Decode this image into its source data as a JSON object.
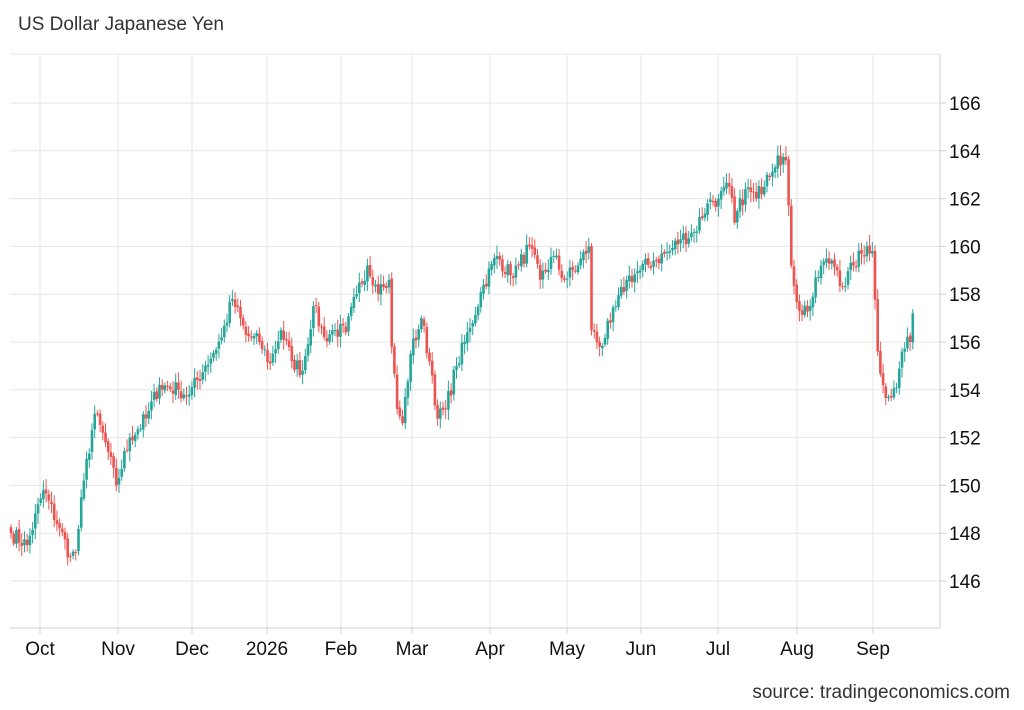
{
  "chart_data": {
    "type": "candlestick",
    "title": "US Dollar Japanese Yen",
    "source": "source: tradingeconomics.com",
    "y_ticks": [
      146,
      148,
      150,
      152,
      154,
      156,
      158,
      160,
      162,
      164,
      166
    ],
    "ylim": [
      144,
      168
    ],
    "x_ticks": [
      "Oct",
      "Nov",
      "Dec",
      "2026",
      "Feb",
      "Mar",
      "Apr",
      "May",
      "Jun",
      "Jul",
      "Aug",
      "Sep"
    ],
    "grid": true,
    "colors": {
      "up": "#26a69a",
      "down": "#ef5350",
      "grid": "#e6e6e6",
      "axis": "#d0d0d0"
    },
    "anchors": [
      [
        0,
        148.0
      ],
      [
        6,
        147.5
      ],
      [
        12,
        149.8
      ],
      [
        18,
        148.2
      ],
      [
        22,
        147.0
      ],
      [
        24,
        147.2
      ],
      [
        27,
        150.2
      ],
      [
        31,
        153.0
      ],
      [
        35,
        151.8
      ],
      [
        39,
        150.0
      ],
      [
        44,
        152.0
      ],
      [
        50,
        152.8
      ],
      [
        55,
        154.2
      ],
      [
        62,
        154.0
      ],
      [
        66,
        153.8
      ],
      [
        72,
        155.0
      ],
      [
        78,
        156.2
      ],
      [
        82,
        157.8
      ],
      [
        87,
        156.3
      ],
      [
        92,
        156.0
      ],
      [
        96,
        155.1
      ],
      [
        100,
        156.5
      ],
      [
        104,
        155.2
      ],
      [
        108,
        154.8
      ],
      [
        112,
        157.5
      ],
      [
        116,
        156.2
      ],
      [
        120,
        156.5
      ],
      [
        124,
        156.4
      ],
      [
        128,
        158.0
      ],
      [
        132,
        159.2
      ],
      [
        135,
        158.4
      ],
      [
        138,
        158.3
      ],
      [
        140,
        158.6
      ],
      [
        141,
        155.8
      ],
      [
        143,
        153.2
      ],
      [
        145,
        152.6
      ],
      [
        148,
        155.5
      ],
      [
        152,
        157.0
      ],
      [
        156,
        154.6
      ],
      [
        158,
        152.8
      ],
      [
        161,
        153.2
      ],
      [
        165,
        155.0
      ],
      [
        170,
        156.6
      ],
      [
        175,
        158.4
      ],
      [
        180,
        159.6
      ],
      [
        185,
        158.8
      ],
      [
        188,
        159.2
      ],
      [
        192,
        160.0
      ],
      [
        196,
        158.6
      ],
      [
        201,
        159.6
      ],
      [
        205,
        158.6
      ],
      [
        210,
        159.2
      ],
      [
        214,
        160.0
      ],
      [
        215,
        156.5
      ],
      [
        218,
        155.8
      ],
      [
        222,
        156.8
      ],
      [
        228,
        158.6
      ],
      [
        233,
        159.0
      ],
      [
        238,
        159.4
      ],
      [
        244,
        159.8
      ],
      [
        248,
        160.3
      ],
      [
        253,
        160.6
      ],
      [
        258,
        161.8
      ],
      [
        262,
        162.0
      ],
      [
        266,
        162.5
      ],
      [
        268,
        161.0
      ],
      [
        272,
        162.4
      ],
      [
        276,
        162.0
      ],
      [
        280,
        163.0
      ],
      [
        284,
        163.8
      ],
      [
        287,
        163.6
      ],
      [
        289,
        159.2
      ],
      [
        292,
        157.3
      ],
      [
        296,
        157.5
      ],
      [
        300,
        159.2
      ],
      [
        304,
        159.4
      ],
      [
        306,
        159.0
      ],
      [
        308,
        158.3
      ],
      [
        312,
        159.2
      ],
      [
        317,
        160.0
      ],
      [
        319,
        159.8
      ],
      [
        321,
        155.6
      ],
      [
        323,
        154.2
      ],
      [
        325,
        153.7
      ],
      [
        328,
        154.1
      ],
      [
        330,
        155.6
      ],
      [
        333,
        156.0
      ],
      [
        334,
        157.2
      ]
    ]
  }
}
